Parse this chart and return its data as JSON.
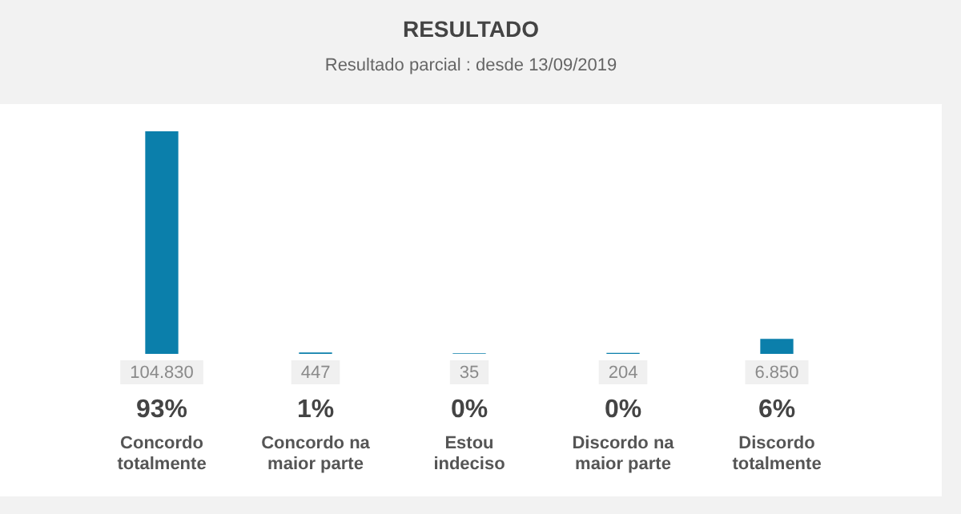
{
  "chart_data": {
    "type": "bar",
    "title": "RESULTADO",
    "subtitle": "Resultado parcial : desde 13/09/2019",
    "categories": [
      "Concordo totalmente",
      "Concordo na maior parte",
      "Estou indeciso",
      "Discordo na maior parte",
      "Discordo totalmente"
    ],
    "values": [
      104830,
      447,
      35,
      204,
      6850
    ],
    "value_labels": [
      "104.830",
      "447",
      "35",
      "204",
      "6.850"
    ],
    "color": "#0b7fab",
    "annotations": [
      "93%",
      "1%",
      "0%",
      "0%",
      "6%"
    ],
    "legend": false
  }
}
